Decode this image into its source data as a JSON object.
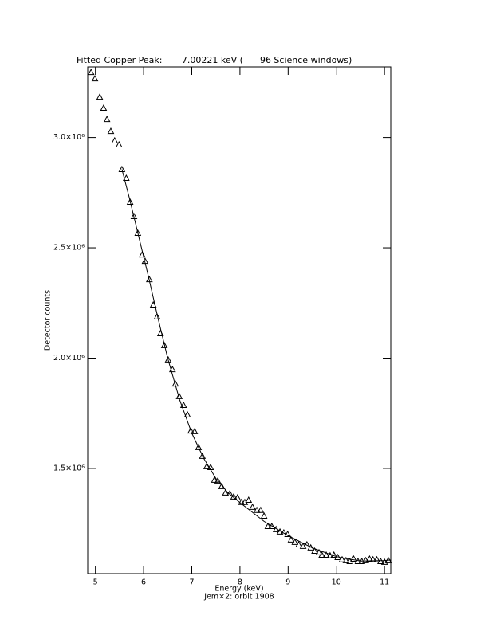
{
  "chart_data": {
    "type": "scatter",
    "title": "Fitted Copper Peak:       7.00221 keV (      96 Science windows)",
    "xlabel": "Energy (keV)",
    "subtitle": "Jem×2: orbit 1908",
    "ylabel": "Detector counts",
    "xlim": [
      4.84,
      11.13
    ],
    "ylim": [
      1023000,
      3320000
    ],
    "xticks": [
      5,
      6,
      7,
      8,
      9,
      10,
      11
    ],
    "yticks": [
      {
        "value": 1500000,
        "label": "1.5×10⁶"
      },
      {
        "value": 2000000,
        "label": "2.0×10⁶"
      },
      {
        "value": 2500000,
        "label": "2.5×10⁶"
      },
      {
        "value": 3000000,
        "label": "3.0×10⁶"
      }
    ],
    "color": "#000000",
    "series": [
      {
        "type": "scatter",
        "marker": "triangle",
        "x": [
          4.91,
          4.99,
          5.09,
          5.17,
          5.24,
          5.32,
          5.4,
          5.49,
          5.55,
          5.64,
          5.72,
          5.8,
          5.88,
          5.97,
          6.03,
          6.12,
          6.2,
          6.28,
          6.35,
          6.43,
          6.51,
          6.6,
          6.66,
          6.74,
          6.83,
          6.91,
          6.98,
          7.06,
          7.14,
          7.22,
          7.31,
          7.39,
          7.47,
          7.54,
          7.62,
          7.7,
          7.79,
          7.87,
          7.95,
          8.03,
          8.1,
          8.18,
          8.26,
          8.35,
          8.43,
          8.5,
          8.58,
          8.66,
          8.75,
          8.83,
          8.91,
          8.99,
          9.06,
          9.14,
          9.22,
          9.31,
          9.39,
          9.47,
          9.55,
          9.64,
          9.7,
          9.79,
          9.87,
          9.95,
          10.03,
          10.12,
          10.2,
          10.28,
          10.36,
          10.45,
          10.53,
          10.61,
          10.69,
          10.76,
          10.84,
          10.92,
          11.0,
          11.08
        ],
        "values": [
          3296000,
          3267000,
          3184000,
          3134000,
          3083000,
          3029000,
          2986000,
          2968000,
          2856000,
          2816000,
          2708000,
          2643000,
          2567000,
          2469000,
          2440000,
          2357000,
          2242000,
          2188000,
          2112000,
          2058000,
          1993000,
          1949000,
          1884000,
          1827000,
          1787000,
          1744000,
          1671000,
          1668000,
          1596000,
          1556000,
          1509000,
          1505000,
          1448000,
          1444000,
          1419000,
          1390000,
          1386000,
          1372000,
          1368000,
          1347000,
          1347000,
          1357000,
          1325000,
          1311000,
          1311000,
          1285000,
          1238000,
          1238000,
          1224000,
          1213000,
          1209000,
          1202000,
          1177000,
          1166000,
          1155000,
          1148000,
          1155000,
          1141000,
          1126000,
          1119000,
          1108000,
          1108000,
          1105000,
          1108000,
          1097000,
          1087000,
          1083000,
          1079000,
          1090000,
          1079000,
          1079000,
          1083000,
          1090000,
          1087000,
          1087000,
          1079000,
          1076000,
          1083000
        ]
      },
      {
        "type": "line",
        "x": [
          5.55,
          5.7,
          5.9,
          6.1,
          6.3,
          6.5,
          6.75,
          7.0,
          7.25,
          7.5,
          7.75,
          8.0,
          8.5,
          9.0,
          9.5,
          10.0,
          10.5,
          11.0,
          11.13
        ],
        "values": [
          2856000,
          2730000,
          2550000,
          2370000,
          2180000,
          2000000,
          1810000,
          1660000,
          1545000,
          1455000,
          1390000,
          1345000,
          1260000,
          1195000,
          1140000,
          1100000,
          1080000,
          1082000,
          1085000
        ]
      }
    ]
  }
}
